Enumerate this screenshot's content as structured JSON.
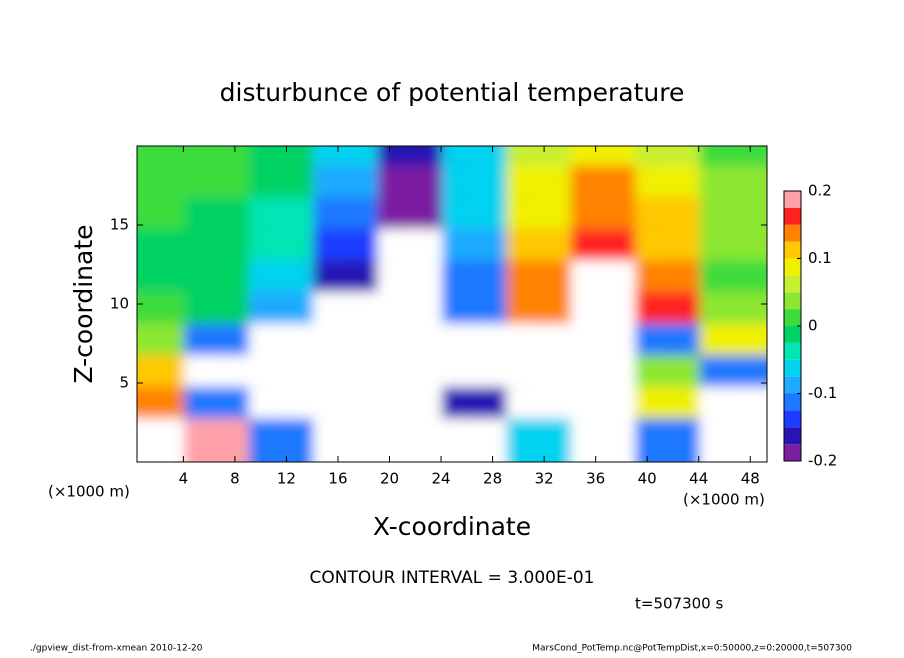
{
  "chart_data": {
    "type": "heatmap",
    "title": "disturbunce of potential temperature",
    "x_label": "X-coordinate",
    "y_label": "Z-coordinate",
    "x_unit_left": "(×1000 m)",
    "x_unit_right": "(×1000 m)",
    "contour_note": "CONTOUR INTERVAL = 3.000E-01",
    "time_note": "t=507300 s",
    "footer_left": "./gpview_dist-from-xmean  2010-12-20",
    "footer_right": "MarsCond_PotTemp.nc@PotTempDist,x=0:50000,z=0:20000,t=507300",
    "x": [
      2.5,
      7.5,
      12.5,
      17.5,
      22.5,
      27.5,
      32.5,
      37.5,
      42.5,
      47.5
    ],
    "y": [
      19,
      17,
      15,
      13,
      11,
      9,
      7,
      5,
      3,
      1
    ],
    "values": [
      [
        0.02,
        0.02,
        0.0,
        -0.06,
        -0.15,
        -0.07,
        0.06,
        0.1,
        0.07,
        0.02
      ],
      [
        0.02,
        0.01,
        -0.02,
        -0.09,
        -0.18,
        -0.06,
        0.08,
        0.13,
        0.09,
        0.03
      ],
      [
        0.01,
        0.0,
        -0.03,
        -0.11,
        -0.19,
        -0.07,
        0.1,
        0.15,
        0.11,
        0.04
      ],
      [
        0.0,
        -0.01,
        -0.04,
        -0.13,
        -0.25,
        -0.08,
        0.12,
        0.17,
        0.12,
        0.03
      ],
      [
        0.0,
        -0.01,
        -0.06,
        -0.15,
        -0.3,
        -0.1,
        0.13,
        0.25,
        0.14,
        0.02
      ],
      [
        0.01,
        0.0,
        -0.08,
        -0.25,
        -0.3,
        -0.12,
        0.14,
        0.3,
        0.16,
        0.03
      ],
      [
        0.05,
        -0.1,
        0.3,
        -0.3,
        -0.3,
        0.3,
        -0.3,
        0.3,
        -0.12,
        0.1
      ],
      [
        0.12,
        0.3,
        -0.3,
        0.3,
        -0.3,
        0.3,
        0.3,
        -0.3,
        0.05,
        -0.1
      ],
      [
        0.15,
        -0.1,
        0.3,
        -0.3,
        0.3,
        -0.15,
        0.3,
        -0.3,
        0.1,
        0.3
      ],
      [
        -0.3,
        0.2,
        -0.1,
        0.3,
        -0.3,
        0.3,
        -0.05,
        0.3,
        -0.12,
        0.3
      ]
    ],
    "xlim": [
      0.4,
      49.3
    ],
    "ylim": [
      0,
      20
    ],
    "xticks": [
      4,
      8,
      12,
      16,
      20,
      24,
      28,
      32,
      36,
      40,
      44,
      48
    ],
    "yticks": [
      5,
      10,
      15
    ],
    "colorbar_bounds": [
      -0.2,
      -0.175,
      -0.15,
      -0.125,
      -0.1,
      -0.075,
      -0.05,
      -0.025,
      0,
      0.025,
      0.05,
      0.075,
      0.1,
      0.125,
      0.15,
      0.175,
      0.2
    ],
    "colorbar_colors": [
      "#7b1fa2",
      "#2814b4",
      "#1e3cff",
      "#1e78ff",
      "#1eaaff",
      "#00d2f0",
      "#00e6b4",
      "#00d264",
      "#3cdc3c",
      "#8ce632",
      "#c8f032",
      "#f0f000",
      "#ffc800",
      "#ff8200",
      "#ff2020",
      "#ffa0a8"
    ],
    "colorbar_ticks": [
      -0.2,
      -0.1,
      0,
      0.1,
      0.2
    ],
    "out_of_range_color": "#ffffff"
  }
}
